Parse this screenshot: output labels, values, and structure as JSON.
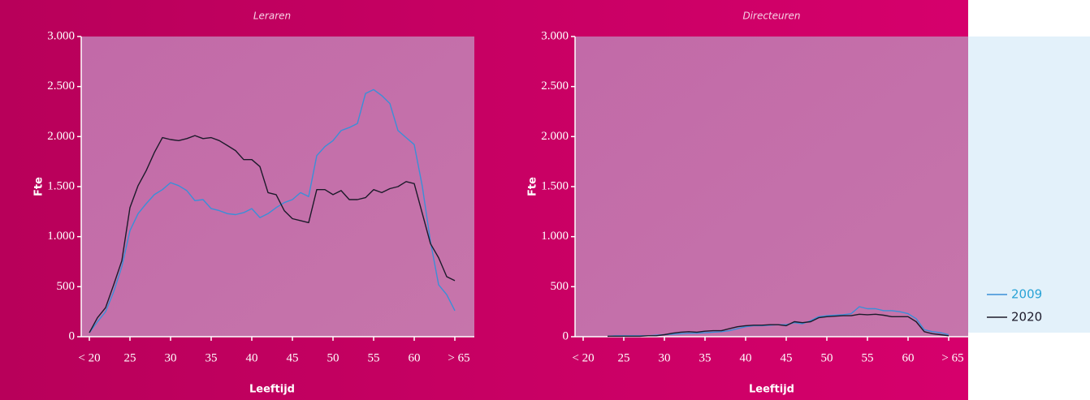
{
  "chart_data": [
    {
      "type": "line",
      "title": "Leraren",
      "xlabel": "Leeftijd",
      "ylabel": "Fte",
      "x": [
        20,
        21,
        22,
        23,
        24,
        25,
        26,
        27,
        28,
        29,
        30,
        31,
        32,
        33,
        34,
        35,
        36,
        37,
        38,
        39,
        40,
        41,
        42,
        43,
        44,
        45,
        46,
        47,
        48,
        49,
        50,
        51,
        52,
        53,
        54,
        55,
        56,
        57,
        58,
        59,
        60,
        61,
        62,
        63,
        64,
        65
      ],
      "series": [
        {
          "name": "2009",
          "color": "#3a8fd8",
          "values": [
            40,
            150,
            250,
            450,
            700,
            1060,
            1230,
            1330,
            1420,
            1470,
            1540,
            1510,
            1460,
            1360,
            1370,
            1280,
            1260,
            1230,
            1220,
            1240,
            1280,
            1190,
            1230,
            1290,
            1340,
            1370,
            1440,
            1400,
            1810,
            1900,
            1960,
            2060,
            2090,
            2130,
            2430,
            2470,
            2410,
            2330,
            2060,
            1990,
            1920,
            1500,
            950,
            520,
            420,
            260
          ]
        },
        {
          "name": "2020",
          "color": "#1c1a2a",
          "values": [
            40,
            190,
            290,
            520,
            760,
            1290,
            1510,
            1660,
            1840,
            1990,
            1970,
            1960,
            1980,
            2010,
            1980,
            1990,
            1960,
            1910,
            1860,
            1770,
            1770,
            1700,
            1440,
            1420,
            1260,
            1180,
            1160,
            1140,
            1470,
            1470,
            1420,
            1460,
            1370,
            1370,
            1390,
            1470,
            1440,
            1480,
            1500,
            1550,
            1530,
            1230,
            930,
            790,
            600,
            560
          ]
        }
      ],
      "xlim": [
        19,
        67
      ],
      "xticks": [
        {
          "value": 20,
          "label": "< 20"
        },
        25,
        30,
        35,
        40,
        45,
        50,
        55,
        60,
        {
          "value": 65,
          "label": "> 65"
        }
      ],
      "ylim": [
        0,
        3000
      ],
      "yticks": [
        0,
        500,
        {
          "value": 1000,
          "label": "1.000"
        },
        {
          "value": 1500,
          "label": "1.500"
        },
        {
          "value": 2000,
          "label": "2.000"
        },
        {
          "value": 2500,
          "label": "2.500"
        },
        {
          "value": 3000,
          "label": "3.000"
        }
      ],
      "legend": "right"
    },
    {
      "type": "line",
      "title": "Directeuren",
      "xlabel": "Leeftijd",
      "ylabel": "Fte",
      "x": [
        23,
        24,
        25,
        26,
        27,
        28,
        29,
        30,
        31,
        32,
        33,
        34,
        35,
        36,
        37,
        38,
        39,
        40,
        41,
        42,
        43,
        44,
        45,
        46,
        47,
        48,
        49,
        50,
        51,
        52,
        53,
        54,
        55,
        56,
        57,
        58,
        59,
        60,
        61,
        62,
        63,
        64,
        65
      ],
      "series": [
        {
          "name": "2009",
          "color": "#3a8fd8",
          "values": [
            5,
            10,
            10,
            10,
            10,
            10,
            15,
            20,
            25,
            30,
            35,
            35,
            40,
            45,
            50,
            60,
            80,
            100,
            110,
            110,
            115,
            120,
            120,
            140,
            130,
            160,
            200,
            210,
            215,
            220,
            230,
            300,
            280,
            280,
            260,
            260,
            250,
            230,
            180,
            70,
            50,
            40,
            20
          ]
        },
        {
          "name": "2020",
          "color": "#1c1a2a",
          "values": [
            5,
            5,
            5,
            5,
            5,
            10,
            10,
            20,
            35,
            45,
            50,
            45,
            55,
            60,
            60,
            80,
            100,
            110,
            115,
            115,
            120,
            120,
            110,
            150,
            140,
            150,
            190,
            200,
            205,
            210,
            210,
            225,
            220,
            225,
            215,
            200,
            200,
            200,
            150,
            50,
            30,
            20,
            10
          ]
        }
      ],
      "xlim": [
        19,
        67
      ],
      "xticks": [
        {
          "value": 20,
          "label": "< 20"
        },
        25,
        30,
        35,
        40,
        45,
        50,
        55,
        60,
        {
          "value": 65,
          "label": "> 65"
        }
      ],
      "ylim": [
        0,
        3000
      ],
      "yticks": [
        0,
        500,
        {
          "value": 1000,
          "label": "1.000"
        },
        {
          "value": 1500,
          "label": "1.500"
        },
        {
          "value": 2000,
          "label": "2.000"
        },
        {
          "value": 2500,
          "label": "2.500"
        },
        {
          "value": 3000,
          "label": "3.000"
        }
      ]
    }
  ]
}
